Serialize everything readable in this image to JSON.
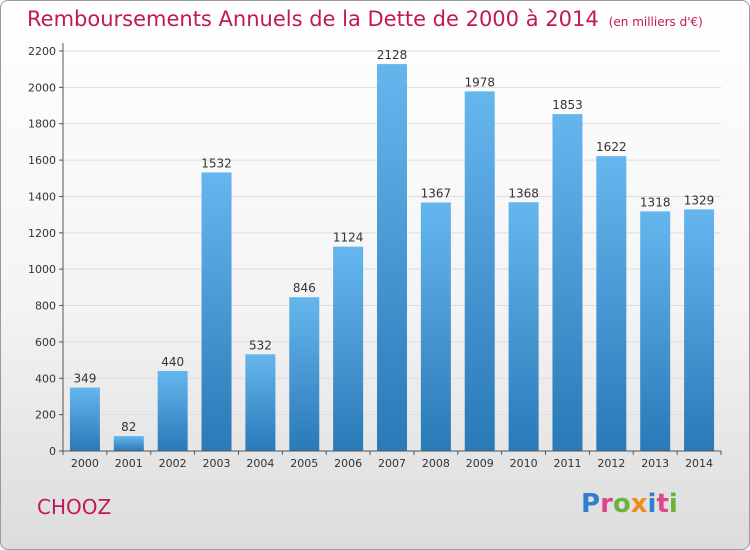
{
  "header": {
    "title": "Remboursements Annuels de la Dette de 2000 à 2014",
    "unit": "(en milliers d'€)"
  },
  "footer": {
    "commune": "CHOOZ",
    "logo_text": "Proxiti",
    "logo_letters": [
      "P",
      "r",
      "o",
      "x",
      "i",
      "t",
      "i"
    ],
    "logo_colors": [
      "#2f7fd0",
      "#e0458a",
      "#6cb33e",
      "#f08c1e",
      "#2f7fd0",
      "#e0458a",
      "#6cb33e"
    ]
  },
  "colors": {
    "title": "#c2185b",
    "bar_top": "#66b6ee",
    "bar_bottom": "#2a79b8",
    "grid": "#dddddd",
    "axis": "#555555",
    "text": "#333333"
  },
  "chart_data": {
    "type": "bar",
    "title": "Remboursements Annuels de la Dette de 2000 à 2014",
    "xlabel": "",
    "ylabel": "",
    "categories": [
      "2000",
      "2001",
      "2002",
      "2003",
      "2004",
      "2005",
      "2006",
      "2007",
      "2008",
      "2009",
      "2010",
      "2011",
      "2012",
      "2013",
      "2014"
    ],
    "values": [
      349,
      82,
      440,
      1532,
      532,
      846,
      1124,
      2128,
      1367,
      1978,
      1368,
      1853,
      1622,
      1318,
      1329
    ],
    "ylim": [
      0,
      2200
    ],
    "yticks": [
      0,
      200,
      400,
      600,
      800,
      1000,
      1200,
      1400,
      1600,
      1800,
      2000,
      2200
    ],
    "grid": true,
    "legend": "none"
  }
}
